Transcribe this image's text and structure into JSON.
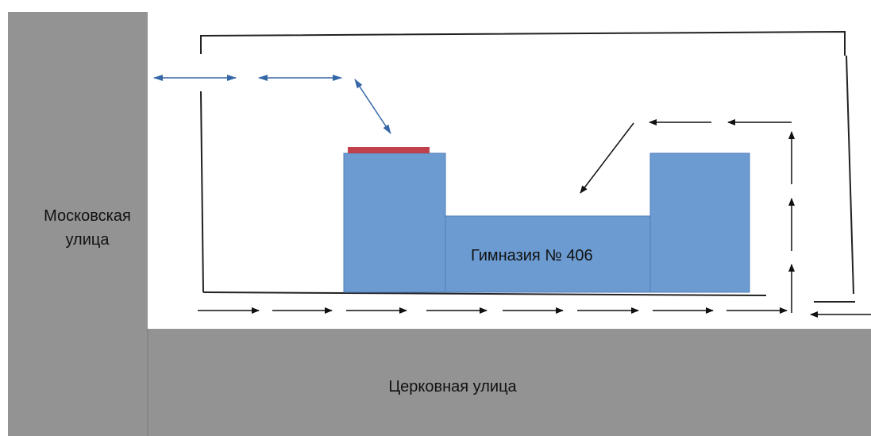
{
  "streets": {
    "moskovskaya": [
      "Московская",
      "улица"
    ],
    "tserkovnaya": "Церковная улица"
  },
  "building": {
    "label": "Гимназия № 406"
  },
  "colors": {
    "street": "#939393",
    "building": "#6b9bd1",
    "building_edge": "#4f7fb8",
    "entrance": "#c0414c",
    "blue_arrow": "#3566a6",
    "black_arrow": "#111111",
    "fence": "#222222"
  }
}
